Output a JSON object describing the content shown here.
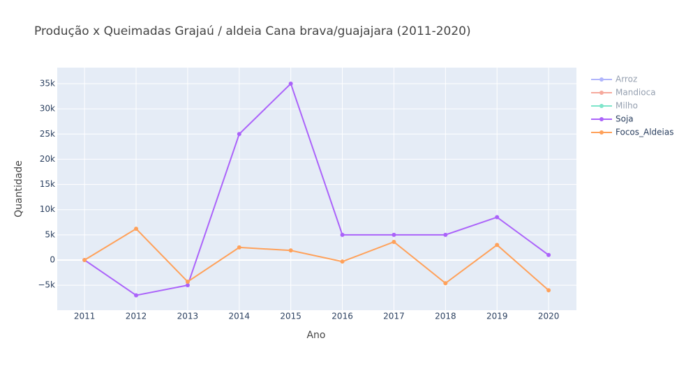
{
  "chart_data": {
    "type": "line",
    "title": "Produção x Queimadas Grajaú / aldeia Cana brava/guajajara  (2011-2020)",
    "xlabel": "Ano",
    "ylabel": "Quantidade",
    "x": [
      2011,
      2012,
      2013,
      2014,
      2015,
      2016,
      2017,
      2018,
      2019,
      2020
    ],
    "series": [
      {
        "name": "Arroz",
        "color": "#636efa",
        "visible": false
      },
      {
        "name": "Mandioca",
        "color": "#ef553b",
        "visible": false
      },
      {
        "name": "Milho",
        "color": "#00cc96",
        "visible": false
      },
      {
        "name": "Soja",
        "color": "#ab63fa",
        "visible": true,
        "values": [
          0,
          -7000,
          -5000,
          25000,
          35000,
          5000,
          5000,
          5000,
          8500,
          1000
        ]
      },
      {
        "name": "Focos_Aldeias",
        "color": "#ffa15a",
        "visible": true,
        "values": [
          0,
          6200,
          -4300,
          2500,
          1900,
          -300,
          3600,
          -4600,
          3000,
          -6000
        ]
      }
    ],
    "xlim": [
      2010.47,
      2020.54
    ],
    "ylim": [
      -9960,
      38180
    ],
    "xticks": [
      2011,
      2012,
      2013,
      2014,
      2015,
      2016,
      2017,
      2018,
      2019,
      2020
    ],
    "yticks": [
      {
        "value": -5000,
        "label": "−5k"
      },
      0,
      {
        "value": 5000,
        "label": "5k"
      },
      {
        "value": 10000,
        "label": "10k"
      },
      {
        "value": 15000,
        "label": "15k"
      },
      {
        "value": 20000,
        "label": "20k"
      },
      {
        "value": 25000,
        "label": "25k"
      },
      {
        "value": 30000,
        "label": "30k"
      },
      {
        "value": 35000,
        "label": "35k"
      }
    ],
    "grid": true
  }
}
